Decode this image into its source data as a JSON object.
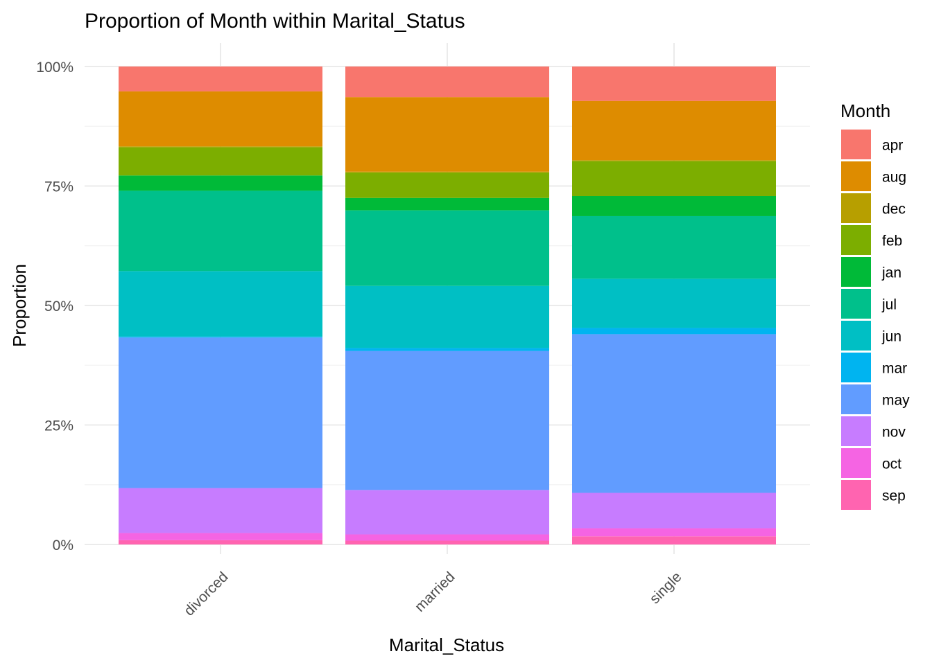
{
  "chart_data": {
    "type": "bar",
    "stacked": true,
    "normalized": true,
    "title": "Proportion of Month within Marital_Status",
    "xlabel": "Marital_Status",
    "ylabel": "Proportion",
    "ylim": [
      0,
      1
    ],
    "y_ticks": [
      0,
      0.25,
      0.5,
      0.75,
      1.0
    ],
    "y_tick_labels": [
      "0%",
      "25%",
      "50%",
      "75%",
      "100%"
    ],
    "categories": [
      "divorced",
      "married",
      "single"
    ],
    "grid": true,
    "legend": {
      "title": "Month",
      "position": "right"
    },
    "series": [
      {
        "name": "apr",
        "color": "#F8766D",
        "values": [
          0.052,
          0.064,
          0.072
        ]
      },
      {
        "name": "aug",
        "color": "#DE8C00",
        "values": [
          0.115,
          0.156,
          0.124
        ]
      },
      {
        "name": "dec",
        "color": "#B79F00",
        "values": [
          0.002,
          0.002,
          0.002
        ]
      },
      {
        "name": "feb",
        "color": "#7CAE00",
        "values": [
          0.059,
          0.053,
          0.073
        ]
      },
      {
        "name": "jan",
        "color": "#00BA38",
        "values": [
          0.032,
          0.026,
          0.042
        ]
      },
      {
        "name": "jul",
        "color": "#00C08B",
        "values": [
          0.168,
          0.158,
          0.131
        ]
      },
      {
        "name": "jun",
        "color": "#00BFC4",
        "values": [
          0.137,
          0.13,
          0.103
        ]
      },
      {
        "name": "mar",
        "color": "#00B4F0",
        "values": [
          0.002,
          0.006,
          0.013
        ]
      },
      {
        "name": "may",
        "color": "#619CFF",
        "values": [
          0.315,
          0.291,
          0.332
        ]
      },
      {
        "name": "nov",
        "color": "#C77CFF",
        "values": [
          0.094,
          0.093,
          0.074
        ]
      },
      {
        "name": "oct",
        "color": "#F564E3",
        "values": [
          0.015,
          0.013,
          0.017
        ]
      },
      {
        "name": "sep",
        "color": "#FF64B0",
        "values": [
          0.009,
          0.008,
          0.017
        ]
      }
    ]
  }
}
